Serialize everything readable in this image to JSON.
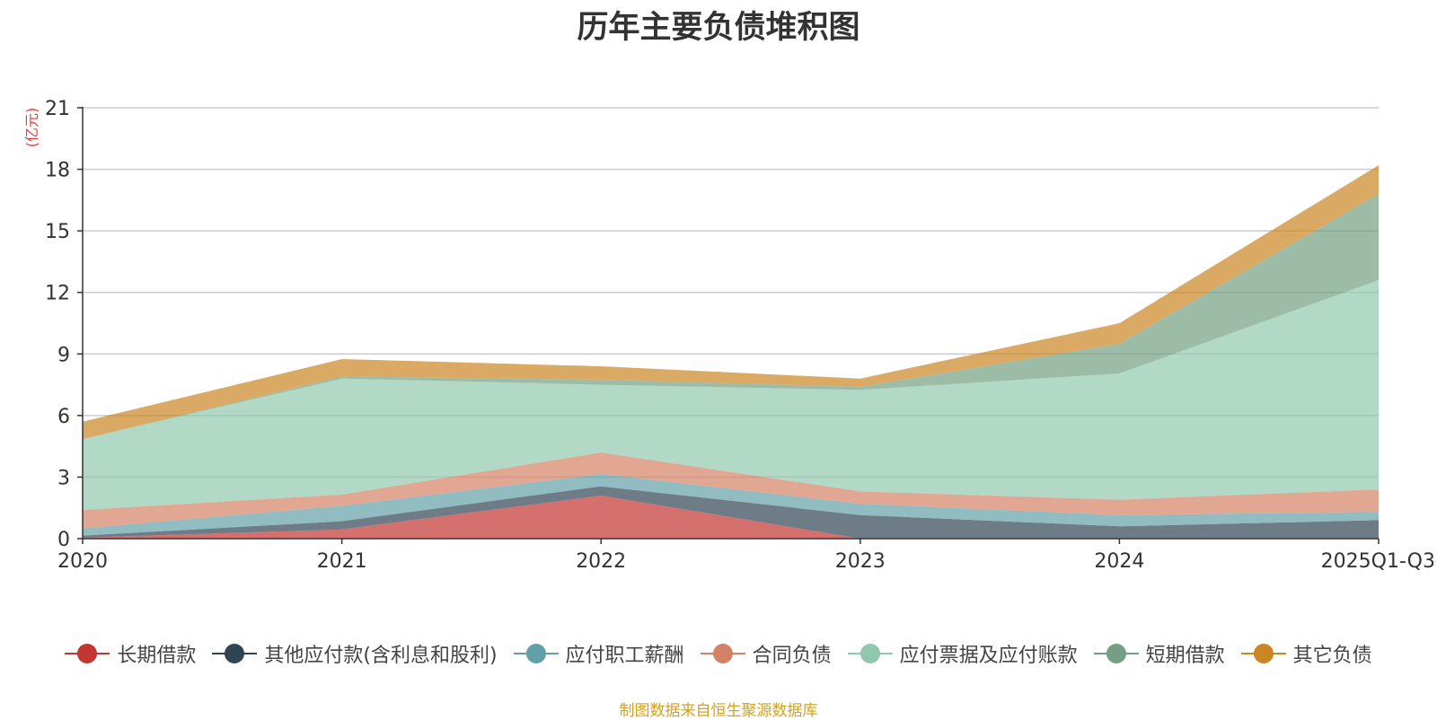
{
  "chart_data": {
    "type": "area",
    "stacked": true,
    "title": "历年主要负债堆积图",
    "ylabel": "(亿元)",
    "xlabel": "",
    "categories": [
      "2020",
      "2021",
      "2022",
      "2023",
      "2024",
      "2025Q1-Q3"
    ],
    "ylim": [
      0,
      21
    ],
    "yticks": [
      0,
      3,
      6,
      9,
      12,
      15,
      18,
      21
    ],
    "grid": true,
    "legend_position": "bottom",
    "series": [
      {
        "name": "长期借款",
        "color": "#c23531",
        "values": [
          0.05,
          0.45,
          2.1,
          0.0,
          0.0,
          0.0
        ]
      },
      {
        "name": "其他应付款(含利息和股利)",
        "color": "#2f4554",
        "values": [
          0.1,
          0.4,
          0.45,
          1.15,
          0.6,
          0.9
        ]
      },
      {
        "name": "应付职工薪酬",
        "color": "#61a0a8",
        "values": [
          0.35,
          0.75,
          0.6,
          0.55,
          0.55,
          0.4
        ]
      },
      {
        "name": "合同负债",
        "color": "#d48265",
        "values": [
          0.9,
          0.55,
          1.05,
          0.6,
          0.75,
          1.1
        ]
      },
      {
        "name": "应付票据及应付账款",
        "color": "#91c7ae",
        "values": [
          3.45,
          5.65,
          3.3,
          4.95,
          6.15,
          10.2
        ]
      },
      {
        "name": "短期借款",
        "color": "#749f83",
        "values": [
          0.0,
          0.1,
          0.25,
          0.15,
          1.45,
          4.2
        ]
      },
      {
        "name": "其它负债",
        "color": "#ca8622",
        "values": [
          0.85,
          0.85,
          0.65,
          0.4,
          1.0,
          1.4
        ]
      }
    ]
  },
  "source_text": "制图数据来自恒生聚源数据库",
  "colors": {
    "title": "#333333",
    "axis": "#333333",
    "grid": "#cccccc",
    "unit_label": "#e6393a",
    "source": "#d4a11e"
  }
}
